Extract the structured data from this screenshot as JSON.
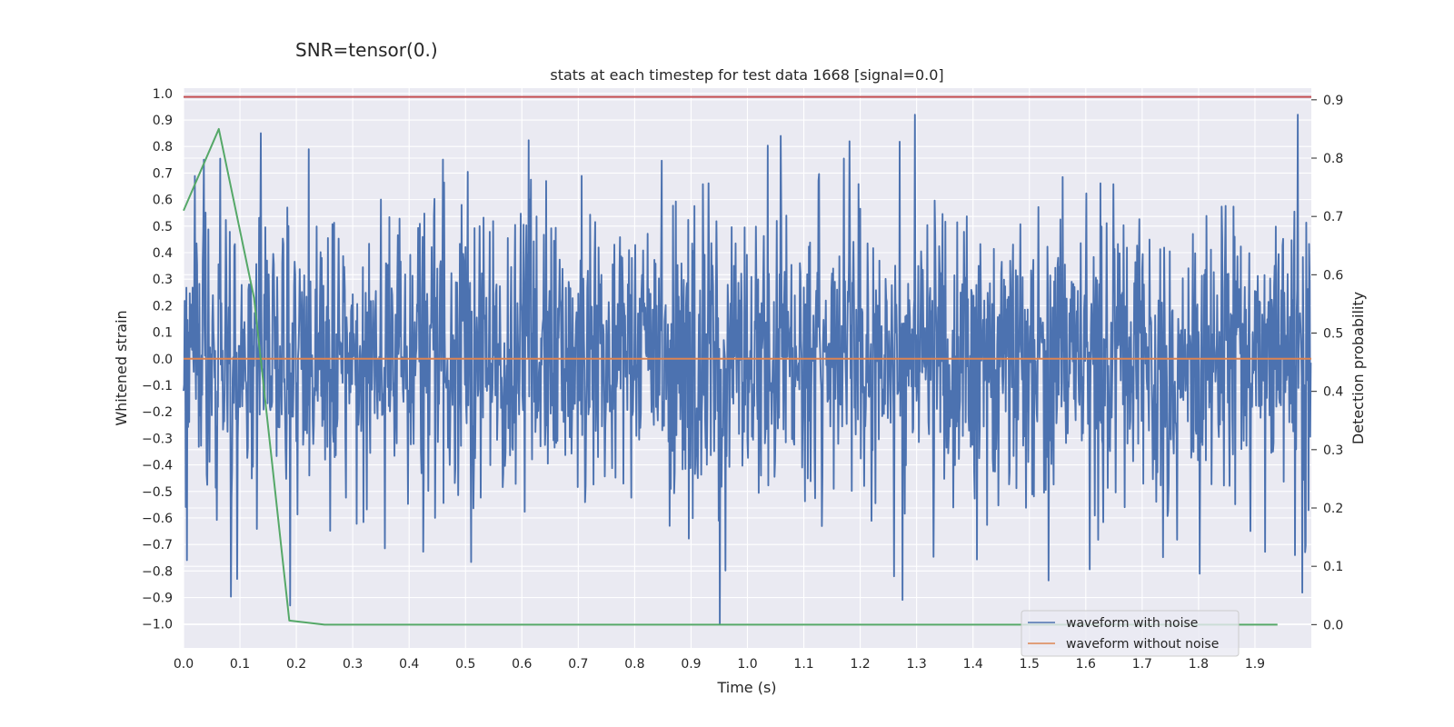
{
  "suptitle": "SNR=tensor(0.)",
  "chart_data": {
    "type": "line",
    "title": "stats at each timestep for test data 1668 [signal=0.0]",
    "xlabel": "Time (s)",
    "ylabel": "Whitened strain",
    "ylabel_right": "Detection probability",
    "xlim": [
      0.0,
      2.0
    ],
    "ylim": [
      -1.09,
      1.02
    ],
    "ylim_right": [
      -0.04,
      0.92
    ],
    "xticks": [
      "0.0",
      "0.1",
      "0.2",
      "0.3",
      "0.4",
      "0.5",
      "0.6",
      "0.7",
      "0.8",
      "0.9",
      "1.0",
      "1.1",
      "1.2",
      "1.3",
      "1.4",
      "1.5",
      "1.6",
      "1.7",
      "1.8",
      "1.9"
    ],
    "yticks": [
      "1.0",
      "0.9",
      "0.8",
      "0.7",
      "0.6",
      "0.5",
      "0.4",
      "0.3",
      "0.2",
      "0.1",
      "0.0",
      "−0.1",
      "−0.2",
      "−0.3",
      "−0.4",
      "−0.5",
      "−0.6",
      "−0.7",
      "−0.8",
      "−0.9",
      "−1.0"
    ],
    "yticks_right": [
      "0.9",
      "0.8",
      "0.7",
      "0.6",
      "0.5",
      "0.4",
      "0.3",
      "0.2",
      "0.1",
      "0.0"
    ],
    "grid": true,
    "legend_position": "bottom-right",
    "series": [
      {
        "name": "waveform with noise",
        "color": "#4c72b0",
        "axis": "left",
        "kind": "noise",
        "n_points": 2000,
        "y_range": [
          -1.0,
          0.92
        ],
        "peaks": [
          [
            0.137,
            0.85
          ],
          [
            0.222,
            0.79
          ],
          [
            1.059,
            0.84
          ],
          [
            1.181,
            0.82
          ],
          [
            1.297,
            0.92
          ],
          [
            1.976,
            0.92
          ]
        ],
        "troughs": [
          [
            0.095,
            -0.83
          ],
          [
            0.189,
            -0.93
          ],
          [
            0.951,
            -1.0
          ],
          [
            1.802,
            -0.81
          ],
          [
            1.26,
            -0.82
          ],
          [
            1.971,
            -0.74
          ]
        ]
      },
      {
        "name": "waveform without noise",
        "color": "#dd8452",
        "axis": "left",
        "x": [
          0.0,
          2.0
        ],
        "y": [
          0.0,
          0.0
        ]
      },
      {
        "color": "#55a868",
        "axis": "right",
        "x": [
          0.0,
          0.0625,
          0.125,
          0.1875,
          0.25,
          1.94
        ],
        "y": [
          0.71,
          0.85,
          0.56,
          0.007,
          0.0,
          0.0
        ]
      },
      {
        "color": "#c44e52",
        "axis": "right",
        "x": [
          0.0,
          2.0
        ],
        "y": [
          0.905,
          0.905
        ]
      }
    ]
  }
}
